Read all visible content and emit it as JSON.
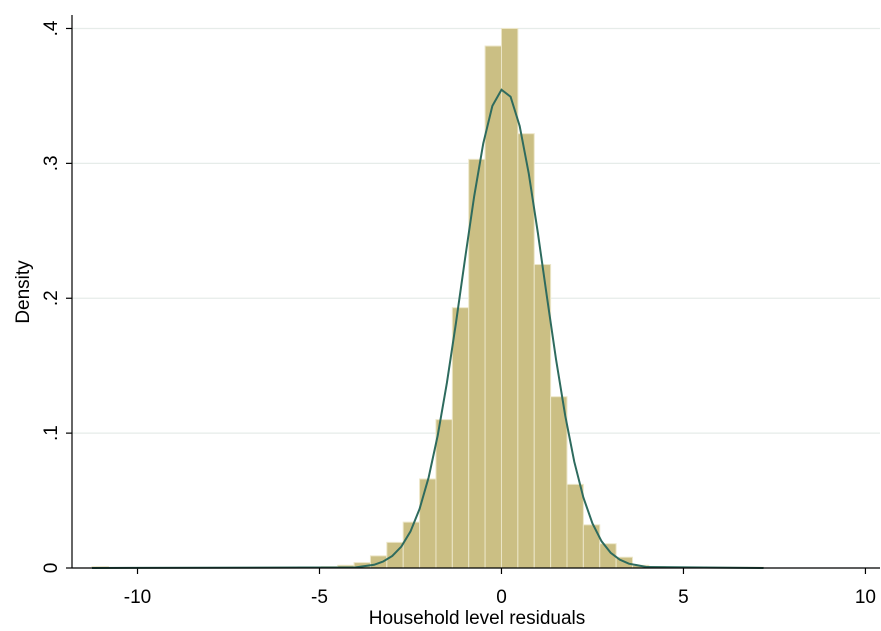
{
  "chart_data": {
    "type": "histogram",
    "x_label": "Household level residuals",
    "y_label": "Density",
    "bins": [
      -11.25,
      -10.8,
      -10.35,
      -9.9,
      -9.45,
      -9.0,
      -8.55,
      -8.1,
      -7.65,
      -7.2,
      -6.75,
      -6.3,
      -5.85,
      -5.4,
      -4.95,
      -4.5,
      -4.05,
      -3.6,
      -3.15,
      -2.7,
      -2.25,
      -1.8,
      -1.35,
      -0.9,
      -0.45,
      0,
      0.45,
      0.9,
      1.35,
      1.8,
      2.25,
      2.7,
      3.15,
      3.6,
      4.05,
      4.5,
      4.95,
      5.4,
      5.85,
      6.3,
      6.75,
      7.2
    ],
    "values": [
      0.001,
      0,
      0,
      0,
      0,
      0,
      0,
      0,
      0,
      0,
      0,
      0.0005,
      0.0005,
      0.0005,
      0.001,
      0.002,
      0.004,
      0.009,
      0.019,
      0.034,
      0.066,
      0.11,
      0.193,
      0.303,
      0.387,
      0.4,
      0.322,
      0.225,
      0.127,
      0.062,
      0.032,
      0.018,
      0.008,
      0.002,
      0.001,
      0.0005,
      0.0005,
      0.0005,
      0.0005,
      0.0005,
      0.0005
    ],
    "color": "#cbbf84",
    "density_curve": {
      "color": "#2e6b5e",
      "x": [
        -11.25,
        -4,
        -3.5,
        -3.25,
        -3,
        -2.75,
        -2.5,
        -2.25,
        -2,
        -1.75,
        -1.5,
        -1.25,
        -1,
        -0.75,
        -0.5,
        -0.25,
        0,
        0.25,
        0.5,
        0.75,
        1,
        1.25,
        1.5,
        1.75,
        2,
        2.25,
        2.5,
        2.75,
        3,
        3.25,
        3.5,
        4,
        7.2
      ],
      "values": [
        0,
        0.0005,
        0.0024,
        0.0048,
        0.0089,
        0.0159,
        0.0271,
        0.0438,
        0.0673,
        0.0985,
        0.1372,
        0.1818,
        0.2295,
        0.2756,
        0.3149,
        0.3426,
        0.3546,
        0.3494,
        0.3277,
        0.2924,
        0.2484,
        0.2008,
        0.1545,
        0.1132,
        0.0788,
        0.0523,
        0.033,
        0.0198,
        0.0113,
        0.0062,
        0.0032,
        0.0007,
        0
      ]
    },
    "xlim": [
      -11.8,
      10.4
    ],
    "ylim": [
      0,
      0.41
    ],
    "xticks": [
      -10,
      -5,
      0,
      5,
      10
    ],
    "yticks": [
      0,
      {
        "value": 0.1,
        "label": ".1"
      },
      {
        "value": 0.2,
        "label": ".2"
      },
      {
        "value": 0.3,
        "label": ".3"
      },
      {
        "value": 0.4,
        "label": ".4"
      }
    ],
    "grid": true
  }
}
